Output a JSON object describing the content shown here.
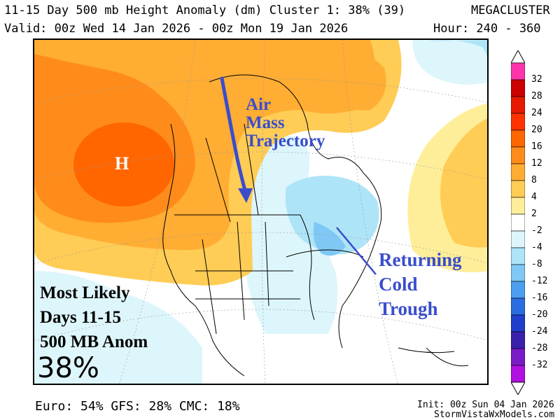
{
  "header": {
    "title": "11-15 Day 500 mb Height Anomaly (dm) Cluster 1: 38% (39)",
    "brand": "MEGACLUSTER",
    "valid": "Valid: 00z Wed 14 Jan 2026 - 00z Mon 19 Jan 2026",
    "hours": "Hour: 240 - 360"
  },
  "map": {
    "high_label": "H",
    "arrow_text_lines": [
      "Air",
      "Mass",
      "Trajectory"
    ],
    "trough_text_lines": [
      "Returning",
      "Cold",
      "Trough"
    ],
    "summary_lines": [
      "Most Likely",
      "Days 11-15",
      "500 MB Anom"
    ],
    "percent": "38%"
  },
  "colorbar": {
    "labels": [
      "32",
      "28",
      "24",
      "20",
      "16",
      "12",
      "8",
      "4",
      "2",
      "-2",
      "-4",
      "-8",
      "-12",
      "-16",
      "-20",
      "-24",
      "-28",
      "-32"
    ],
    "colors": [
      "#ff33aa",
      "#cc0000",
      "#e61a00",
      "#ff3300",
      "#ff6600",
      "#ff8c1a",
      "#ffad33",
      "#ffcc55",
      "#ffee99",
      "#ffffff",
      "#ddf6fb",
      "#aee4f7",
      "#7fc8f5",
      "#4c9ff0",
      "#2a6de0",
      "#1f3fcc",
      "#3a20aa",
      "#7a1bc8",
      "#b010e0"
    ]
  },
  "footer": {
    "models": "Euro: 54% GFS: 28% CMC: 18%",
    "init": "Init: 00z Sun 04 Jan 2026",
    "site": "StormVistaWxModels.com"
  }
}
